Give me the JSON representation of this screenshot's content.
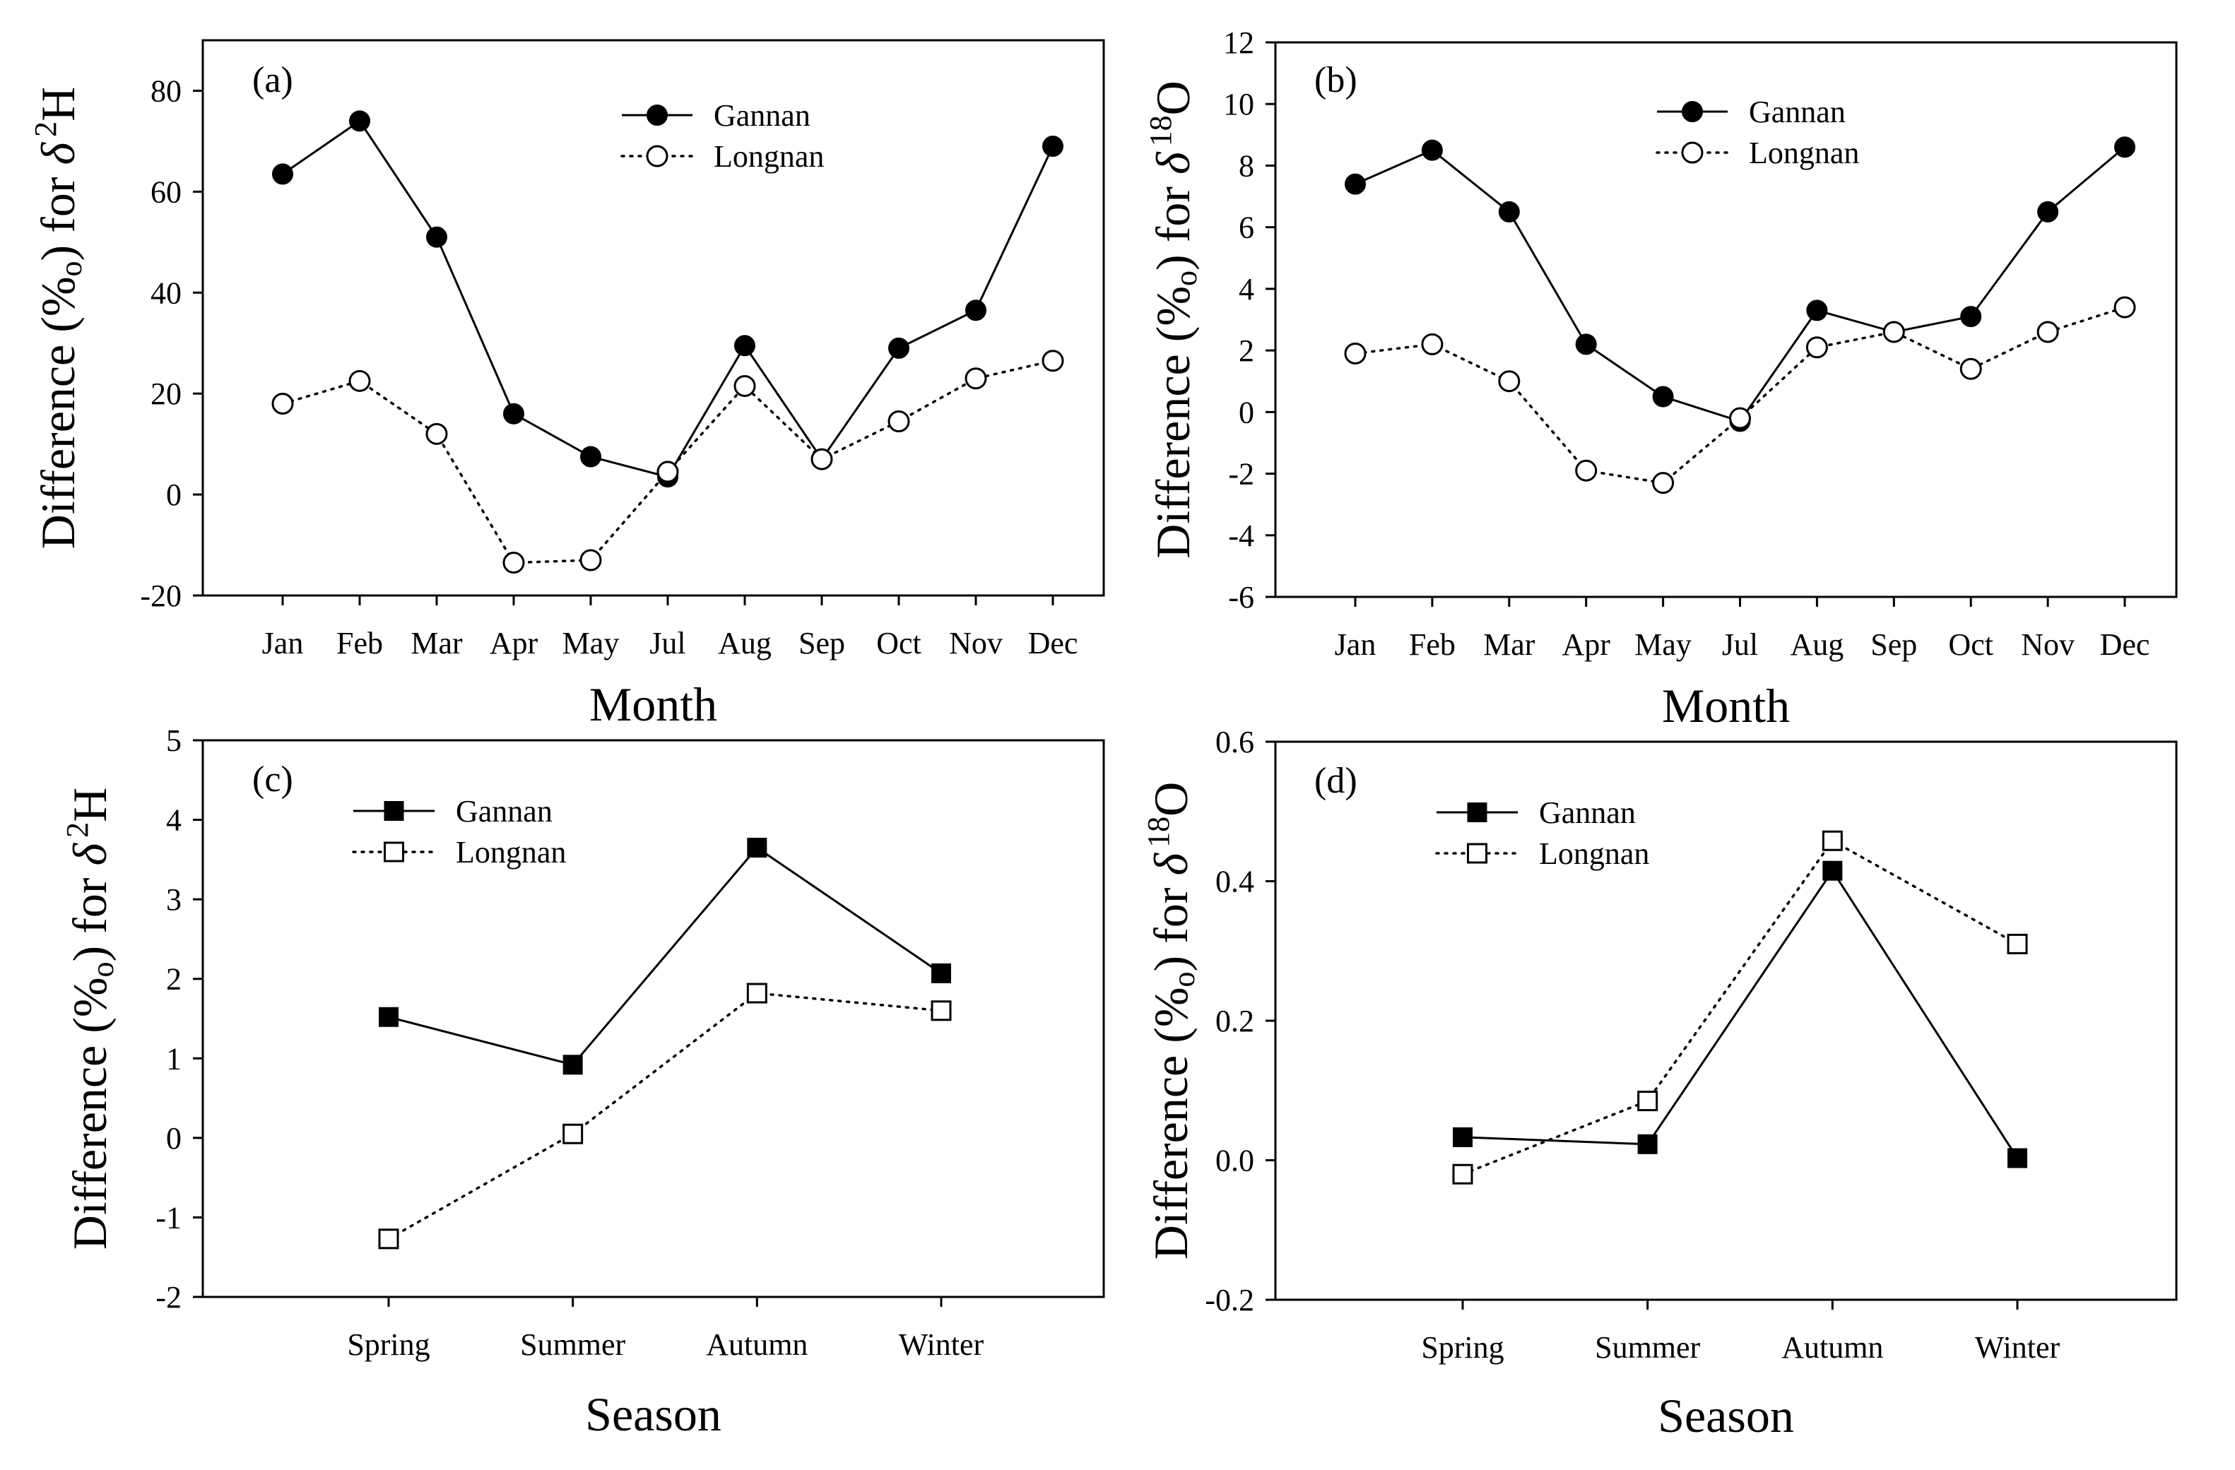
{
  "chart_data": [
    {
      "panel": "(a)",
      "type": "line",
      "categories": [
        "Jan",
        "Feb",
        "Mar",
        "Apr",
        "May",
        "Jul",
        "Aug",
        "Sep",
        "Oct",
        "Nov",
        "Dec"
      ],
      "series": [
        {
          "name": "Gannan",
          "marker": "filled-circle",
          "line": "solid",
          "values": [
            63.5,
            74,
            51,
            16,
            7.5,
            3.5,
            29.5,
            7,
            29,
            36.5,
            69
          ]
        },
        {
          "name": "Longnan",
          "marker": "open-circle",
          "line": "dotted",
          "values": [
            18,
            22.5,
            12,
            -13.5,
            -13,
            4.5,
            21.5,
            7,
            14.5,
            23,
            26.5
          ]
        }
      ],
      "ylim": [
        -20,
        90
      ],
      "yticks": [
        -20,
        0,
        20,
        40,
        60,
        80
      ],
      "ytick_labels": [
        "-20",
        "0",
        "20",
        "40",
        "60",
        "80"
      ],
      "xlabel": "Month",
      "ylabel_prefix": "Difference (%",
      "ylabel_permil": "o",
      "ylabel_mid": ") for ",
      "ylabel_delta": "δ",
      "ylabel_sup": "2",
      "ylabel_elem": "H",
      "legend": "top-center"
    },
    {
      "panel": "(b)",
      "type": "line",
      "categories": [
        "Jan",
        "Feb",
        "Mar",
        "Apr",
        "May",
        "Jul",
        "Aug",
        "Sep",
        "Oct",
        "Nov",
        "Dec"
      ],
      "series": [
        {
          "name": "Gannan",
          "marker": "filled-circle",
          "line": "solid",
          "values": [
            7.4,
            8.5,
            6.5,
            2.2,
            0.5,
            -0.3,
            3.3,
            2.6,
            3.1,
            6.5,
            8.6
          ]
        },
        {
          "name": "Longnan",
          "marker": "open-circle",
          "line": "dotted",
          "values": [
            1.9,
            2.2,
            1.0,
            -1.9,
            -2.3,
            -0.2,
            2.1,
            2.6,
            1.4,
            2.6,
            3.4
          ]
        }
      ],
      "ylim": [
        -6,
        12
      ],
      "yticks": [
        -6,
        -4,
        -2,
        0,
        2,
        4,
        6,
        8,
        10,
        12
      ],
      "ytick_labels": [
        "-6",
        "-4",
        "-2",
        "0",
        "2",
        "4",
        "6",
        "8",
        "10",
        "12"
      ],
      "xlabel": "Month",
      "ylabel_prefix": "Difference (%",
      "ylabel_permil": "o",
      "ylabel_mid": ") for ",
      "ylabel_delta": "δ",
      "ylabel_sup": "18",
      "ylabel_elem": "O",
      "legend": "top-center"
    },
    {
      "panel": "(c)",
      "type": "line",
      "categories": [
        "Spring",
        "Summer",
        "Autumn",
        "Winter"
      ],
      "series": [
        {
          "name": "Gannan",
          "marker": "filled-square",
          "line": "solid",
          "values": [
            1.52,
            0.92,
            3.65,
            2.07
          ]
        },
        {
          "name": "Longnan",
          "marker": "open-square",
          "line": "dotted",
          "values": [
            -1.27,
            0.05,
            1.82,
            1.6
          ]
        }
      ],
      "ylim": [
        -2,
        5
      ],
      "yticks": [
        -2,
        -1,
        0,
        1,
        2,
        3,
        4,
        5
      ],
      "ytick_labels": [
        "-2",
        "-1",
        "0",
        "1",
        "2",
        "3",
        "4",
        "5"
      ],
      "xlabel": "Season",
      "ylabel_prefix": "Difference (%",
      "ylabel_permil": "o",
      "ylabel_mid": ") for ",
      "ylabel_delta": "δ",
      "ylabel_sup": "2",
      "ylabel_elem": "H",
      "legend": "top-left"
    },
    {
      "panel": "(d)",
      "type": "line",
      "categories": [
        "Spring",
        "Summer",
        "Autumn",
        "Winter"
      ],
      "series": [
        {
          "name": "Gannan",
          "marker": "filled-square",
          "line": "solid",
          "values": [
            0.033,
            0.023,
            0.415,
            0.003
          ]
        },
        {
          "name": "Longnan",
          "marker": "open-square",
          "line": "dotted",
          "values": [
            -0.02,
            0.085,
            0.458,
            0.31
          ]
        }
      ],
      "ylim": [
        -0.2,
        0.6
      ],
      "yticks": [
        -0.2,
        0.0,
        0.2,
        0.4,
        0.6
      ],
      "ytick_labels": [
        "-0.2",
        "0.0",
        "0.2",
        "0.4",
        "0.6"
      ],
      "xlabel": "Season",
      "ylabel_prefix": "Difference (%",
      "ylabel_permil": "o",
      "ylabel_mid": ") for ",
      "ylabel_delta": "δ",
      "ylabel_sup": "18",
      "ylabel_elem": "O",
      "legend": "top-left"
    }
  ]
}
